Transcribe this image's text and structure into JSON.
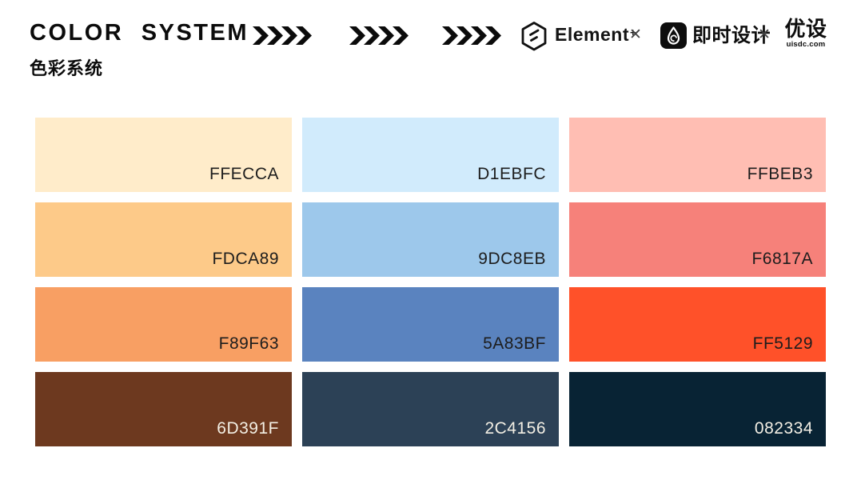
{
  "header": {
    "title": "COLOR SYSTEM",
    "subtitle": "色彩系统",
    "separator": "✕",
    "element_logo": {
      "label": "Element",
      "plus": "+"
    },
    "jsdesign_logo": {
      "label": "即时设计"
    },
    "uisdc_logo": {
      "label": "优设",
      "domain": "uisdc.com"
    }
  },
  "palette": {
    "dark_text_color": "#1d1d1d",
    "light_text_color": "#F3EFE4",
    "rows": [
      {
        "light_text": false,
        "swatches": [
          {
            "hex": "FFECCA"
          },
          {
            "hex": "D1EBFC"
          },
          {
            "hex": "FFBEB3"
          }
        ]
      },
      {
        "light_text": false,
        "swatches": [
          {
            "hex": "FDCA89"
          },
          {
            "hex": "9DC8EB"
          },
          {
            "hex": "F6817A"
          }
        ]
      },
      {
        "light_text": false,
        "swatches": [
          {
            "hex": "F89F63"
          },
          {
            "hex": "5A83BF"
          },
          {
            "hex": "FF5129"
          }
        ]
      },
      {
        "light_text": true,
        "swatches": [
          {
            "hex": "6D391F"
          },
          {
            "hex": "2C4156"
          },
          {
            "hex": "082334"
          }
        ]
      }
    ]
  }
}
